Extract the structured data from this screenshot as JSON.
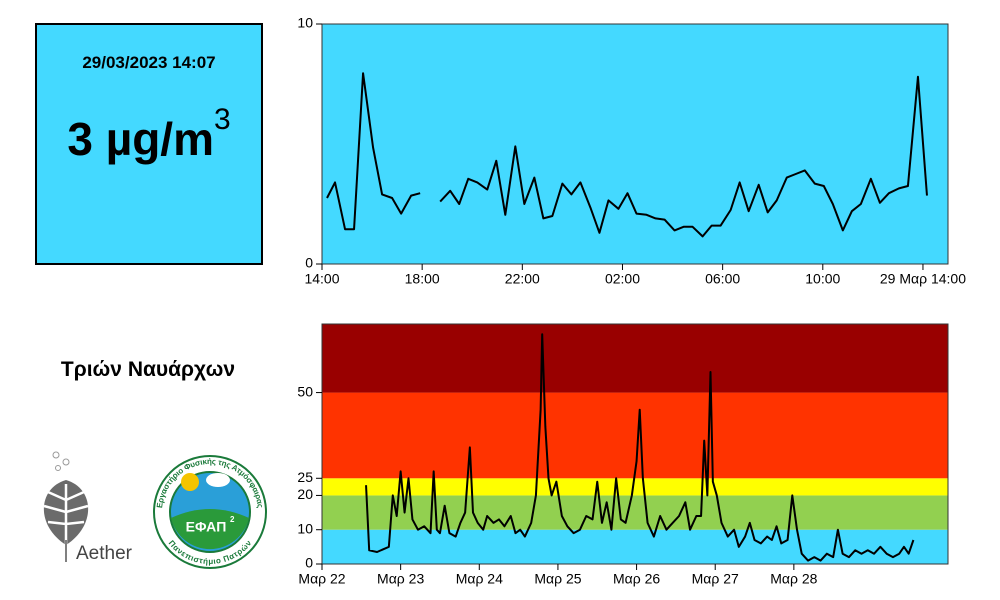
{
  "panel": {
    "datetime": "29/03/2023 14:07",
    "value": 3,
    "unit": "µg/m",
    "unit_power": "3",
    "color": "#44d9ff"
  },
  "station": "Τριών Ναυάρχων",
  "logos": {
    "aether": "Aether",
    "efap": "ΕΦΑΠ",
    "efap_power": "2",
    "efap_ring_top": "Εργαστήριο Φυσικής της Ατμόσφαιρας",
    "efap_ring_bottom": "Πανεπιστήμιο Πατρών"
  },
  "chart_data": [
    {
      "type": "line",
      "background": "#44d9ff",
      "color": "#000000",
      "xlim": [
        0,
        25
      ],
      "xticks": [
        {
          "value": 0,
          "label": "14:00"
        },
        {
          "value": 4,
          "label": "18:00"
        },
        {
          "value": 8,
          "label": "22:00"
        },
        {
          "value": 12,
          "label": "02:00"
        },
        {
          "value": 16,
          "label": "06:00"
        },
        {
          "value": 20,
          "label": "10:00"
        },
        {
          "value": 24,
          "label": "29 Μαρ 14:00"
        }
      ],
      "ylim": [
        0,
        10
      ],
      "yticks": [
        0,
        10
      ],
      "x": [
        0.2,
        0.52,
        0.92,
        1.28,
        1.64,
        2.04,
        2.4,
        2.8,
        3.16,
        3.56,
        3.92,
        4.32,
        4.72,
        5.12,
        5.48,
        5.84,
        6.2,
        6.6,
        6.96,
        7.32,
        7.72,
        8.08,
        8.48,
        8.84,
        9.2,
        9.6,
        9.96,
        10.32,
        10.72,
        11.08,
        11.44,
        11.84,
        12.2,
        12.56,
        12.96,
        13.32,
        13.68,
        14.08,
        14.44,
        14.8,
        15.2,
        15.56,
        15.92,
        16.32,
        16.68,
        17.04,
        17.44,
        17.8,
        18.16,
        18.56,
        18.92,
        19.28,
        19.68,
        20.04,
        20.4,
        20.8,
        21.16,
        21.52,
        21.92,
        22.28,
        22.64,
        23.04,
        23.4,
        23.8,
        24.16
      ],
      "values": [
        2.75,
        3.4,
        1.45,
        1.45,
        7.95,
        4.85,
        2.9,
        2.75,
        2.1,
        2.85,
        2.95,
        null,
        2.6,
        3.05,
        2.5,
        3.55,
        3.4,
        3.1,
        4.3,
        2.05,
        4.9,
        2.5,
        3.6,
        1.9,
        2.0,
        3.35,
        2.9,
        3.4,
        2.35,
        1.3,
        2.65,
        2.3,
        2.95,
        2.1,
        2.05,
        1.9,
        1.85,
        1.4,
        1.55,
        1.55,
        1.15,
        1.6,
        1.6,
        2.25,
        3.4,
        2.2,
        3.3,
        2.15,
        2.65,
        3.6,
        3.75,
        3.9,
        3.35,
        3.25,
        2.5,
        1.4,
        2.2,
        2.5,
        3.55,
        2.55,
        2.95,
        3.15,
        3.25,
        7.8,
        2.85
      ]
    },
    {
      "type": "line",
      "bands": [
        {
          "from": 0,
          "to": 10,
          "color": "#44d9ff"
        },
        {
          "from": 10,
          "to": 20,
          "color": "#92d050"
        },
        {
          "from": 20,
          "to": 25,
          "color": "#ffff00"
        },
        {
          "from": 25,
          "to": 50,
          "color": "#ff3300"
        },
        {
          "from": 50,
          "to": 70,
          "color": "#990000"
        }
      ],
      "color": "#000000",
      "xlim": [
        0,
        7.96
      ],
      "xticks": [
        {
          "value": 0,
          "label": "Μαρ 22"
        },
        {
          "value": 1,
          "label": "Μαρ 23"
        },
        {
          "value": 2,
          "label": "Μαρ 24"
        },
        {
          "value": 3,
          "label": "Μαρ 25"
        },
        {
          "value": 4,
          "label": "Μαρ 26"
        },
        {
          "value": 5,
          "label": "Μαρ 27"
        },
        {
          "value": 6,
          "label": "Μαρ 28"
        }
      ],
      "ylim": [
        0,
        70
      ],
      "yticks": [
        0,
        10,
        20,
        25,
        50
      ],
      "x": [
        0.56,
        0.6,
        0.7,
        0.8,
        0.85,
        0.9,
        0.95,
        1.0,
        1.05,
        1.1,
        1.15,
        1.22,
        1.3,
        1.38,
        1.42,
        1.46,
        1.5,
        1.56,
        1.62,
        1.7,
        1.76,
        1.82,
        1.88,
        1.92,
        1.98,
        2.05,
        2.1,
        2.18,
        2.25,
        2.32,
        2.4,
        2.46,
        2.52,
        2.58,
        2.66,
        2.72,
        2.78,
        2.8,
        2.84,
        2.88,
        2.92,
        2.98,
        3.05,
        3.12,
        3.2,
        3.28,
        3.36,
        3.44,
        3.5,
        3.56,
        3.62,
        3.68,
        3.74,
        3.8,
        3.86,
        3.94,
        4.0,
        4.04,
        4.08,
        4.14,
        4.22,
        4.3,
        4.38,
        4.46,
        4.54,
        4.62,
        4.68,
        4.76,
        4.82,
        4.86,
        4.9,
        4.94,
        4.97,
        5.02,
        5.08,
        5.16,
        5.24,
        5.3,
        5.38,
        5.44,
        5.5,
        5.58,
        5.66,
        5.72,
        5.78,
        5.84,
        5.92,
        5.98,
        6.04,
        6.1,
        6.18,
        6.26,
        6.34,
        6.42,
        6.5,
        6.56,
        6.62,
        6.7,
        6.78,
        6.86,
        6.94,
        7.02,
        7.1,
        7.18,
        7.26,
        7.34,
        7.4,
        7.46,
        7.52
      ],
      "values": [
        23,
        4,
        3.5,
        4.5,
        5,
        20,
        14,
        27,
        15,
        25,
        13,
        10,
        11,
        9,
        27,
        10,
        9,
        17,
        9,
        8,
        12,
        15,
        34,
        15,
        12,
        10,
        14,
        12,
        13,
        11,
        14,
        9,
        10,
        8,
        12,
        20,
        45,
        67,
        40,
        25,
        20,
        24,
        14,
        11,
        9,
        10,
        14,
        13,
        24,
        12,
        18,
        10,
        25,
        13,
        12,
        20,
        30,
        45,
        25,
        12,
        8,
        14,
        10,
        12,
        14,
        18,
        10,
        14,
        14,
        36,
        20,
        56,
        24,
        20,
        12,
        8,
        10,
        5,
        8,
        12,
        7,
        6,
        8,
        7,
        11,
        6,
        7,
        20,
        10,
        3,
        1,
        2,
        1,
        3,
        2,
        10,
        3,
        2,
        4,
        3,
        4,
        3,
        5,
        3,
        2,
        3,
        5,
        3,
        7
      ]
    }
  ]
}
